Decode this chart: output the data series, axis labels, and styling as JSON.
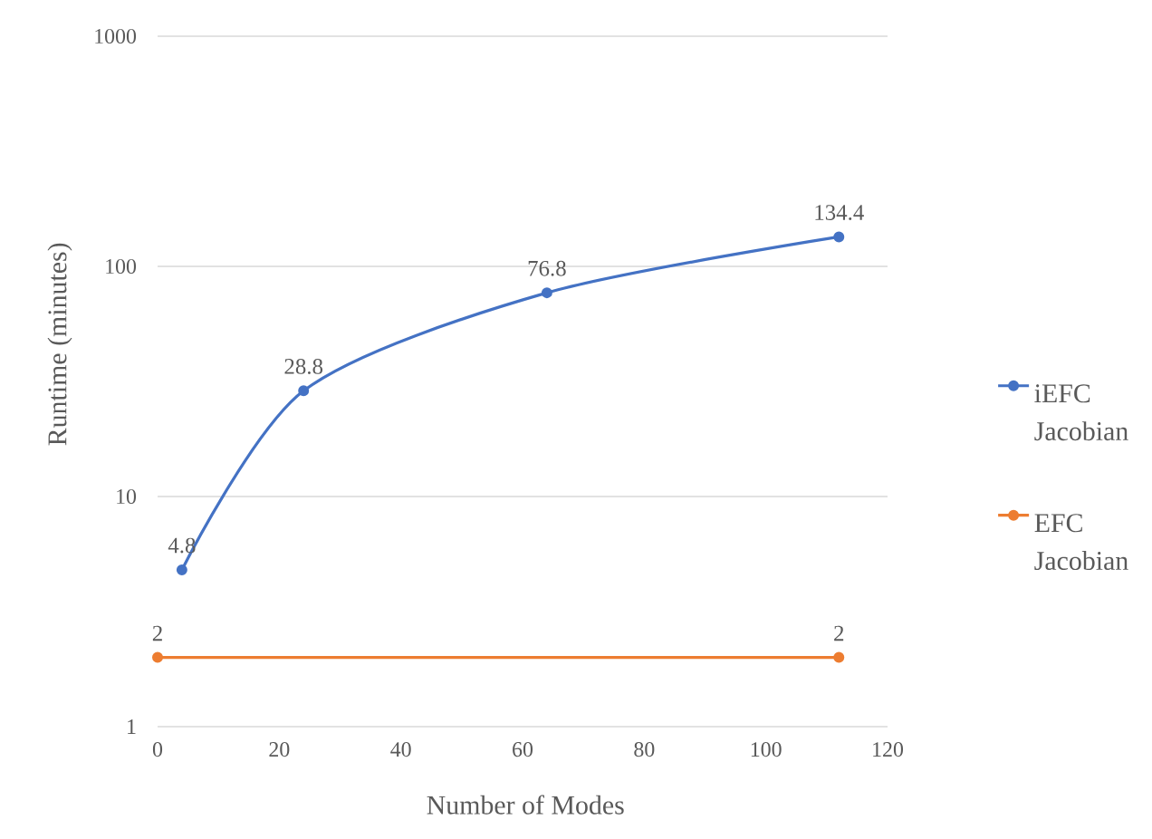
{
  "chart_data": {
    "type": "line",
    "xlabel": "Number of Modes",
    "ylabel": "Runtime (minutes)",
    "series": [
      {
        "name": "iEFC Jacobian",
        "color": "#4472c4",
        "x": [
          4,
          24,
          64,
          112
        ],
        "values": [
          4.8,
          28.8,
          76.8,
          134.4
        ]
      },
      {
        "name": "EFC Jacobian",
        "color": "#ed7d31",
        "x": [
          0,
          112
        ],
        "values": [
          2,
          2
        ]
      }
    ],
    "xlim": [
      0,
      120
    ],
    "xticks": [
      0,
      20,
      40,
      60,
      80,
      100,
      120
    ],
    "ylim": [
      1,
      1000
    ],
    "yticks": [
      1,
      10,
      100,
      1000
    ],
    "log": "y",
    "grid": "y",
    "legend": "right",
    "marker": "circle",
    "data_labels": true
  }
}
